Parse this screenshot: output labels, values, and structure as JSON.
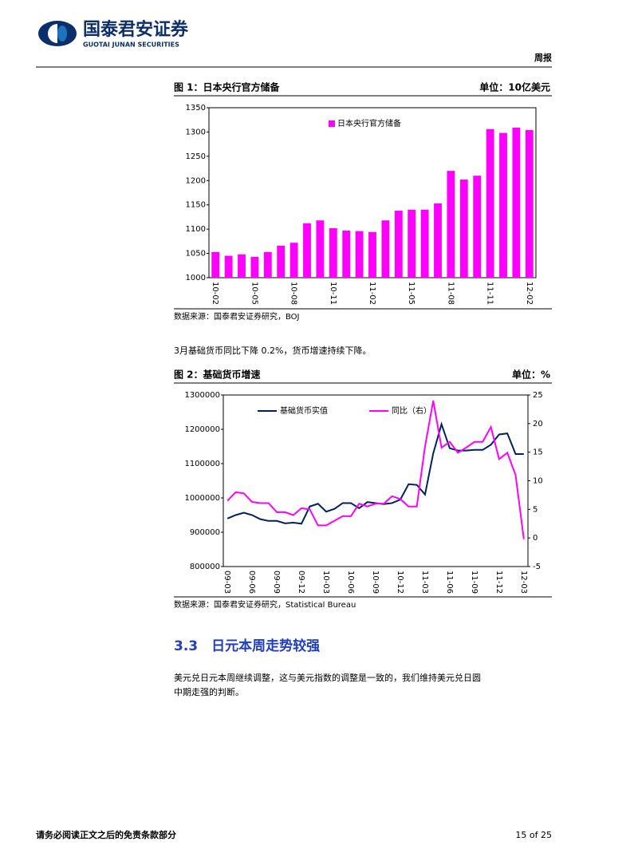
{
  "header": {
    "company": "国泰君安证券",
    "company_en": "GUOTAI JUNAN SECURITIES",
    "report_type": "周报"
  },
  "chart_data": [
    {
      "type": "bar",
      "title": "图 1：日本央行官方储备",
      "unit": "单位：10亿美元",
      "source": "数据来源：国泰君安证券研究，BOJ",
      "categories": [
        "10-02",
        null,
        null,
        "10-05",
        null,
        null,
        "10-08",
        null,
        null,
        "10-11",
        null,
        null,
        "11-02",
        null,
        null,
        "11-05",
        null,
        null,
        "11-08",
        null,
        null,
        "11-11",
        null,
        null,
        "12-02"
      ],
      "series": [
        {
          "name": "日本央行官方储备",
          "color": "#ff00ff",
          "values": [
            1053,
            1045,
            1048,
            1043,
            1053,
            1066,
            1072,
            1112,
            1118,
            1102,
            1097,
            1096,
            1094,
            1118,
            1138,
            1140,
            1140,
            1153,
            1220,
            1202,
            1210,
            1306,
            1298,
            1309,
            1304
          ]
        }
      ],
      "ylim": [
        1000,
        1350
      ],
      "yticks": [
        1000,
        1050,
        1100,
        1150,
        1200,
        1250,
        1300,
        1350
      ],
      "legend": "top"
    },
    {
      "type": "line",
      "title": "图 2：基础货币增速",
      "unit": "单位：%",
      "source": "数据来源：国泰君安证券研究，Statistical Bureau",
      "categories": [
        "09-03",
        null,
        null,
        "09-06",
        null,
        null,
        "09-09",
        null,
        null,
        "09-12",
        null,
        null,
        "10-03",
        null,
        null,
        "10-06",
        null,
        null,
        "10-09",
        null,
        null,
        "10-12",
        null,
        null,
        "11-03",
        null,
        null,
        "11-06",
        null,
        null,
        "11-09",
        null,
        null,
        "11-12",
        null,
        null,
        "12-03"
      ],
      "series": [
        {
          "name": "基础货币实值",
          "color": "#002060",
          "values": [
            940000,
            950000,
            957000,
            950000,
            938000,
            933000,
            933000,
            926000,
            928000,
            925000,
            975000,
            983000,
            960000,
            968000,
            985000,
            985000,
            970000,
            988000,
            985000,
            982000,
            985000,
            995000,
            1040000,
            1038000,
            1010000,
            1130000,
            1215000,
            1145000,
            1138000,
            1138000,
            1140000,
            1140000,
            1155000,
            1185000,
            1188000,
            1128000,
            1128000
          ]
        },
        {
          "name": "同比（右）",
          "color": "#ff00ff",
          "axis": "y2",
          "values": [
            6.5,
            8,
            7.8,
            6.3,
            6.1,
            6.1,
            4.5,
            4.5,
            4,
            5.2,
            5,
            2.2,
            2.2,
            3,
            3.8,
            3.8,
            6,
            5.5,
            6,
            6,
            7.3,
            6.8,
            5.5,
            5.5,
            16,
            24,
            15.8,
            16.8,
            14.9,
            15.8,
            16.8,
            16.8,
            19.4,
            13.8,
            14.9,
            11,
            -0.2
          ]
        }
      ],
      "ylim": [
        800000,
        1300000
      ],
      "yticks": [
        800000,
        900000,
        1000000,
        1100000,
        1200000,
        1300000
      ],
      "y2lim": [
        -5,
        25
      ],
      "y2ticks": [
        -5,
        0,
        5,
        10,
        15,
        20,
        25
      ],
      "legend": "top"
    }
  ],
  "paragraphs": [
    "3月基础货币同比下降 0.2%，货币增速持续下降。"
  ],
  "section": {
    "heading": "3.3　日元本周走势较强",
    "text": [
      "美元兑日元本周继续调整，这与美元指数的调整是一致的，我们维持美元兑日圆",
      "中期走强的判断。"
    ]
  },
  "footer": {
    "disclaimer": "请务必阅读正文之后的免责条款部分",
    "page": "15 of 25"
  }
}
